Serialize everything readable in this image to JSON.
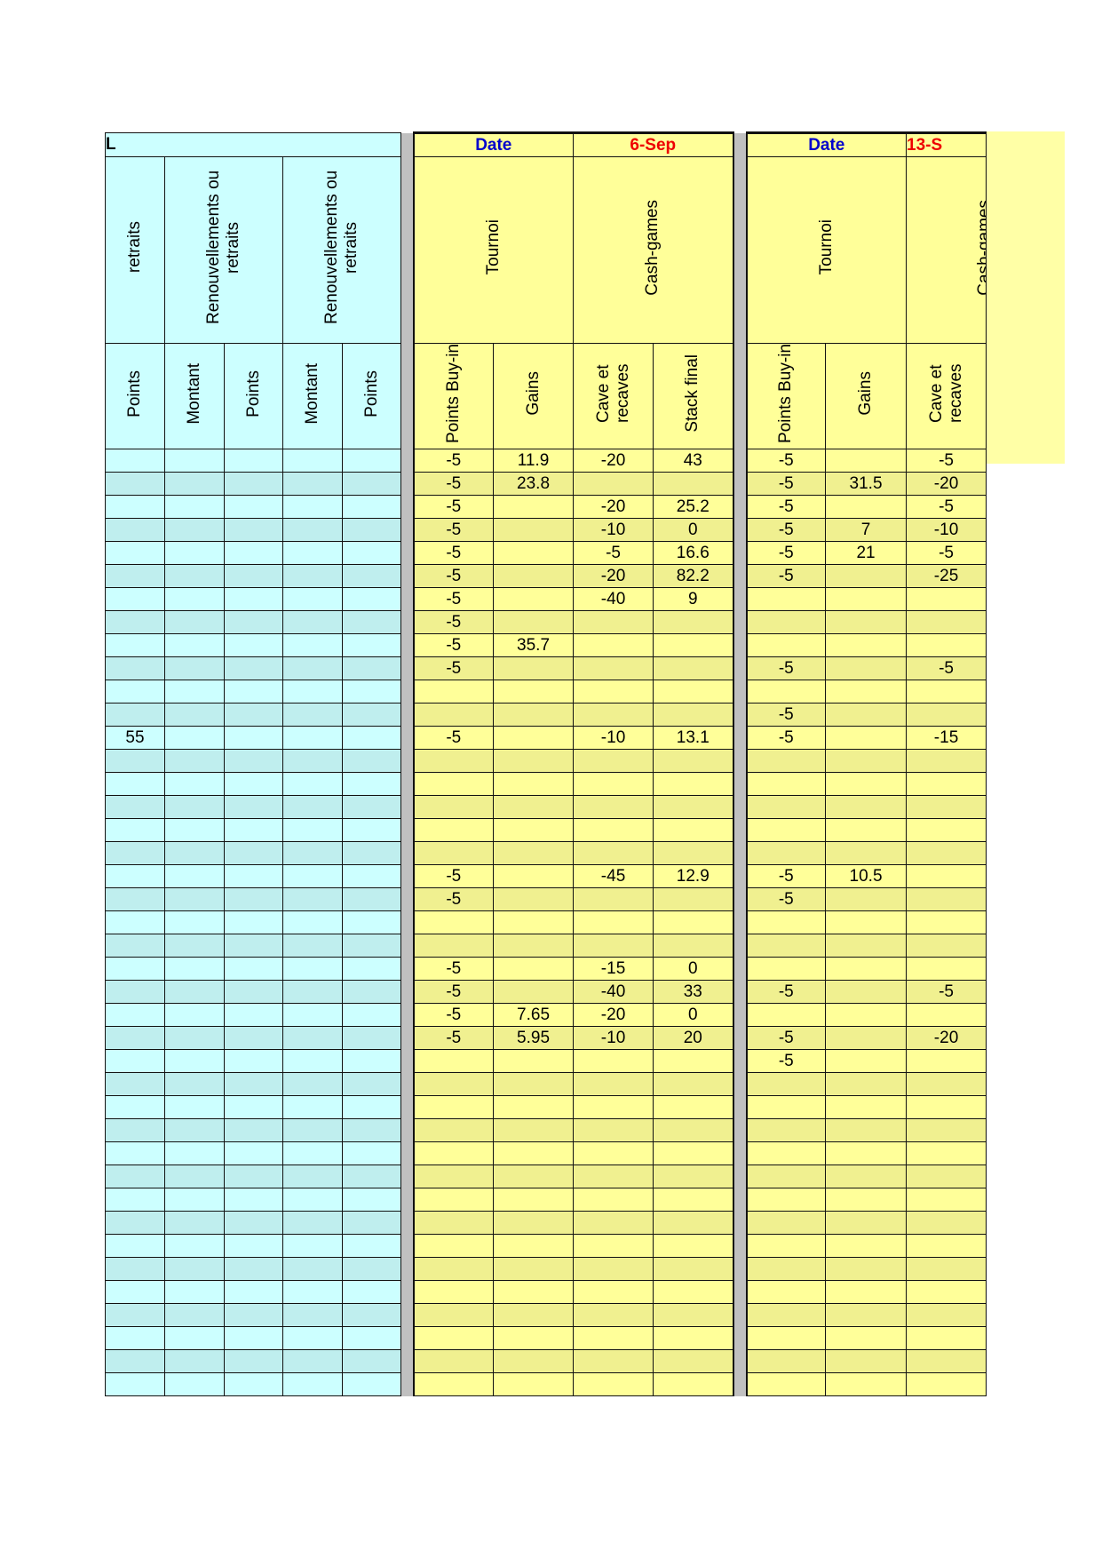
{
  "colors": {
    "cyan": "#ccffff",
    "cyan_alt": "#bfeeee",
    "yellow": "#ffff99",
    "yellow_alt": "#f0f090",
    "separator": "#c0c0c0",
    "date_label": "#0000cc",
    "date_value": "#ee0000"
  },
  "header": {
    "cyan_title": "L",
    "block1": {
      "date_label": "Date",
      "date_value": "6-Sep"
    },
    "block2": {
      "date_label": "Date",
      "date_value": "13-S"
    }
  },
  "groups": {
    "cyan": [
      "retraits",
      "Renouvellements ou retraits",
      "Renouvellements ou retraits"
    ],
    "block1": [
      "Tournoi",
      "Cash-games"
    ],
    "block2": [
      "Tournoi",
      "Cash-games"
    ]
  },
  "columns": {
    "cyan": [
      "Points",
      "Montant",
      "Points",
      "Montant",
      "Points"
    ],
    "block1": [
      "Points Buy-in",
      "Gains",
      "Cave et recaves",
      "Stack final"
    ],
    "block2": [
      "Points Buy-in",
      "Gains",
      "Cave et recaves"
    ]
  },
  "rows": [
    [
      "",
      "",
      "",
      "",
      "",
      "-5",
      "11.9",
      "-20",
      "43",
      "-5",
      "",
      "-5"
    ],
    [
      "",
      "",
      "",
      "",
      "",
      "-5",
      "23.8",
      "",
      "",
      "-5",
      "31.5",
      "-20"
    ],
    [
      "",
      "",
      "",
      "",
      "",
      "-5",
      "",
      "-20",
      "25.2",
      "-5",
      "",
      "-5"
    ],
    [
      "",
      "",
      "",
      "",
      "",
      "-5",
      "",
      "-10",
      "0",
      "-5",
      "7",
      "-10"
    ],
    [
      "",
      "",
      "",
      "",
      "",
      "-5",
      "",
      "-5",
      "16.6",
      "-5",
      "21",
      "-5"
    ],
    [
      "",
      "",
      "",
      "",
      "",
      "-5",
      "",
      "-20",
      "82.2",
      "-5",
      "",
      "-25"
    ],
    [
      "",
      "",
      "",
      "",
      "",
      "-5",
      "",
      "-40",
      "9",
      "",
      "",
      ""
    ],
    [
      "",
      "",
      "",
      "",
      "",
      "-5",
      "",
      "",
      "",
      "",
      "",
      ""
    ],
    [
      "",
      "",
      "",
      "",
      "",
      "-5",
      "35.7",
      "",
      "",
      "",
      "",
      ""
    ],
    [
      "",
      "",
      "",
      "",
      "",
      "-5",
      "",
      "",
      "",
      "-5",
      "",
      "-5"
    ],
    [
      "",
      "",
      "",
      "",
      "",
      "",
      "",
      "",
      "",
      "",
      "",
      ""
    ],
    [
      "",
      "",
      "",
      "",
      "",
      "",
      "",
      "",
      "",
      "-5",
      "",
      ""
    ],
    [
      "55",
      "",
      "",
      "",
      "",
      "-5",
      "",
      "-10",
      "13.1",
      "-5",
      "",
      "-15"
    ],
    [
      "",
      "",
      "",
      "",
      "",
      "",
      "",
      "",
      "",
      "",
      "",
      ""
    ],
    [
      "",
      "",
      "",
      "",
      "",
      "",
      "",
      "",
      "",
      "",
      "",
      ""
    ],
    [
      "",
      "",
      "",
      "",
      "",
      "",
      "",
      "",
      "",
      "",
      "",
      ""
    ],
    [
      "",
      "",
      "",
      "",
      "",
      "",
      "",
      "",
      "",
      "",
      "",
      ""
    ],
    [
      "",
      "",
      "",
      "",
      "",
      "",
      "",
      "",
      "",
      "",
      "",
      ""
    ],
    [
      "",
      "",
      "",
      "",
      "",
      "-5",
      "",
      "-45",
      "12.9",
      "-5",
      "10.5",
      ""
    ],
    [
      "",
      "",
      "",
      "",
      "",
      "-5",
      "",
      "",
      "",
      "-5",
      "",
      ""
    ],
    [
      "",
      "",
      "",
      "",
      "",
      "",
      "",
      "",
      "",
      "",
      "",
      ""
    ],
    [
      "",
      "",
      "",
      "",
      "",
      "",
      "",
      "",
      "",
      "",
      "",
      ""
    ],
    [
      "",
      "",
      "",
      "",
      "",
      "-5",
      "",
      "-15",
      "0",
      "",
      "",
      ""
    ],
    [
      "",
      "",
      "",
      "",
      "",
      "-5",
      "",
      "-40",
      "33",
      "-5",
      "",
      "-5"
    ],
    [
      "",
      "",
      "",
      "",
      "",
      "-5",
      "7.65",
      "-20",
      "0",
      "",
      "",
      ""
    ],
    [
      "",
      "",
      "",
      "",
      "",
      "-5",
      "5.95",
      "-10",
      "20",
      "-5",
      "",
      "-20"
    ],
    [
      "",
      "",
      "",
      "",
      "",
      "",
      "",
      "",
      "",
      "-5",
      "",
      ""
    ],
    [
      "",
      "",
      "",
      "",
      "",
      "",
      "",
      "",
      "",
      "",
      "",
      ""
    ],
    [
      "",
      "",
      "",
      "",
      "",
      "",
      "",
      "",
      "",
      "",
      "",
      ""
    ],
    [
      "",
      "",
      "",
      "",
      "",
      "",
      "",
      "",
      "",
      "",
      "",
      ""
    ],
    [
      "",
      "",
      "",
      "",
      "",
      "",
      "",
      "",
      "",
      "",
      "",
      ""
    ],
    [
      "",
      "",
      "",
      "",
      "",
      "",
      "",
      "",
      "",
      "",
      "",
      ""
    ],
    [
      "",
      "",
      "",
      "",
      "",
      "",
      "",
      "",
      "",
      "",
      "",
      ""
    ],
    [
      "",
      "",
      "",
      "",
      "",
      "",
      "",
      "",
      "",
      "",
      "",
      ""
    ],
    [
      "",
      "",
      "",
      "",
      "",
      "",
      "",
      "",
      "",
      "",
      "",
      ""
    ],
    [
      "",
      "",
      "",
      "",
      "",
      "",
      "",
      "",
      "",
      "",
      "",
      ""
    ],
    [
      "",
      "",
      "",
      "",
      "",
      "",
      "",
      "",
      "",
      "",
      "",
      ""
    ],
    [
      "",
      "",
      "",
      "",
      "",
      "",
      "",
      "",
      "",
      "",
      "",
      ""
    ],
    [
      "",
      "",
      "",
      "",
      "",
      "",
      "",
      "",
      "",
      "",
      "",
      ""
    ],
    [
      "",
      "",
      "",
      "",
      "",
      "",
      "",
      "",
      "",
      "",
      "",
      ""
    ],
    [
      "",
      "",
      "",
      "",
      "",
      "",
      "",
      "",
      "",
      "",
      "",
      ""
    ]
  ]
}
